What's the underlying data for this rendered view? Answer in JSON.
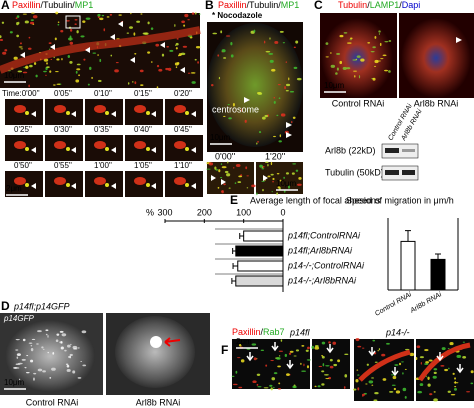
{
  "panels": {
    "A": {
      "letter": "A",
      "stain": [
        "Paxillin",
        "/",
        "Tubulin",
        "/",
        "MP1"
      ],
      "scale_bar": "10μm",
      "times": [
        "Time:0'00''",
        "0'05''",
        "0'10''",
        "0'15''",
        "0'20''",
        "0'25''",
        "0'30''",
        "0'35''",
        "0'40''",
        "0'45''",
        "0'50''",
        "0'55''",
        "1'00''",
        "1'05''",
        "1'10''"
      ],
      "series_scale_bar": "2μm"
    },
    "B": {
      "letter": "B",
      "stain": [
        "Paxillin",
        "/",
        "Tubulin",
        "/",
        "MP1"
      ],
      "treatment": "* Nocodazole",
      "annotation": "centrosome",
      "scale_bar": "10μm",
      "times": [
        "0'00''",
        "1'20''"
      ],
      "inset_scale_bar": "10μm"
    },
    "C": {
      "letter": "C",
      "stain": [
        "Tubulin",
        "/",
        "LAMP1",
        "/",
        "Dapi"
      ],
      "scale_bar": "10μm",
      "conditions": [
        "Control RNAi",
        "Arl8b RNAi"
      ],
      "blot_lanes": [
        "Control RNAi",
        "Arl8b RNAi"
      ],
      "blot_rows": [
        "Arl8b (22kD)",
        "Tubulin (50kD)"
      ]
    },
    "D": {
      "letter": "D",
      "genotype": "p14fl;p14GFP",
      "channel": "p14GFP",
      "scale_bar": "10μm",
      "conditions": [
        "Control RNAi",
        "Arl8b RNAi"
      ]
    },
    "E": {
      "letter": "E"
    },
    "F": {
      "letter": "F",
      "stain": [
        "Paxillin",
        "/",
        "Rab7"
      ],
      "genotypes": [
        "p14fl",
        "p14-/-"
      ],
      "scale_bar": "2μm"
    }
  },
  "chart_data": [
    {
      "type": "bar",
      "orientation": "horizontal",
      "title": "Average length of focal ahesions",
      "xlabel": "%",
      "categories": [
        "p14fl;ControlRNAi",
        "p14fl;Arl8bRNAi",
        "p14-/-;ControlRNAi",
        "p14-/-;Arl8bRNAi"
      ],
      "values": [
        100,
        120,
        115,
        120
      ],
      "errors": [
        10,
        8,
        12,
        10
      ],
      "colors": [
        "#ffffff",
        "#000000",
        "#ffffff",
        "#d9d9d9"
      ],
      "xlim": [
        300,
        0
      ],
      "xticks": [
        300,
        200,
        100,
        0
      ]
    },
    {
      "type": "bar",
      "orientation": "vertical",
      "title": "Speed of migration in μm/h",
      "categories": [
        "Control RNAi",
        "Arl8b RNAi"
      ],
      "values": [
        2.7,
        1.7
      ],
      "errors": [
        0.6,
        0.3
      ],
      "colors": [
        "#ffffff",
        "#000000"
      ],
      "ylim": [
        0,
        4
      ]
    }
  ]
}
